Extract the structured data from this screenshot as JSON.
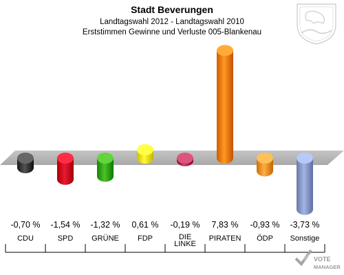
{
  "header": {
    "title": "Stadt Beverungen",
    "subtitle1": "Landtagswahl 2012 - Landtagswahl 2010",
    "subtitle2": "Erststimmen Gewinne und Verluste 005-Blankenau"
  },
  "watermark": {
    "line1": "VOTE",
    "line2": "MANAGER"
  },
  "emblem_icon": "coat-of-arms-icon",
  "chart_data": {
    "type": "bar",
    "title": "Stadt Beverungen",
    "subtitle": "Landtagswahl 2012 - Landtagswahl 2010 / Erststimmen Gewinne und Verluste 005-Blankenau",
    "categories": [
      "CDU",
      "SPD",
      "GRÜNE",
      "FDP",
      "DIE LINKE",
      "PIRATEN",
      "ÖDP",
      "Sonstige"
    ],
    "values": [
      -0.7,
      -1.54,
      -1.32,
      0.61,
      -0.19,
      7.83,
      -0.93,
      -3.73
    ],
    "value_labels": [
      "-0,70 %",
      "-1,54 %",
      "-1,32 %",
      "0,61 %",
      "-0,19 %",
      "7,83 %",
      "-0,93 %",
      "-3,73 %"
    ],
    "colors": [
      "#3a3a3a",
      "#d0001a",
      "#35a80f",
      "#f2e21a",
      "#b0284d",
      "#f07f0a",
      "#f0942a",
      "#8b9ccc"
    ],
    "ylim": [
      -3.73,
      7.83
    ],
    "xlabel": "",
    "ylabel": "",
    "grid": false,
    "legend": "none"
  }
}
